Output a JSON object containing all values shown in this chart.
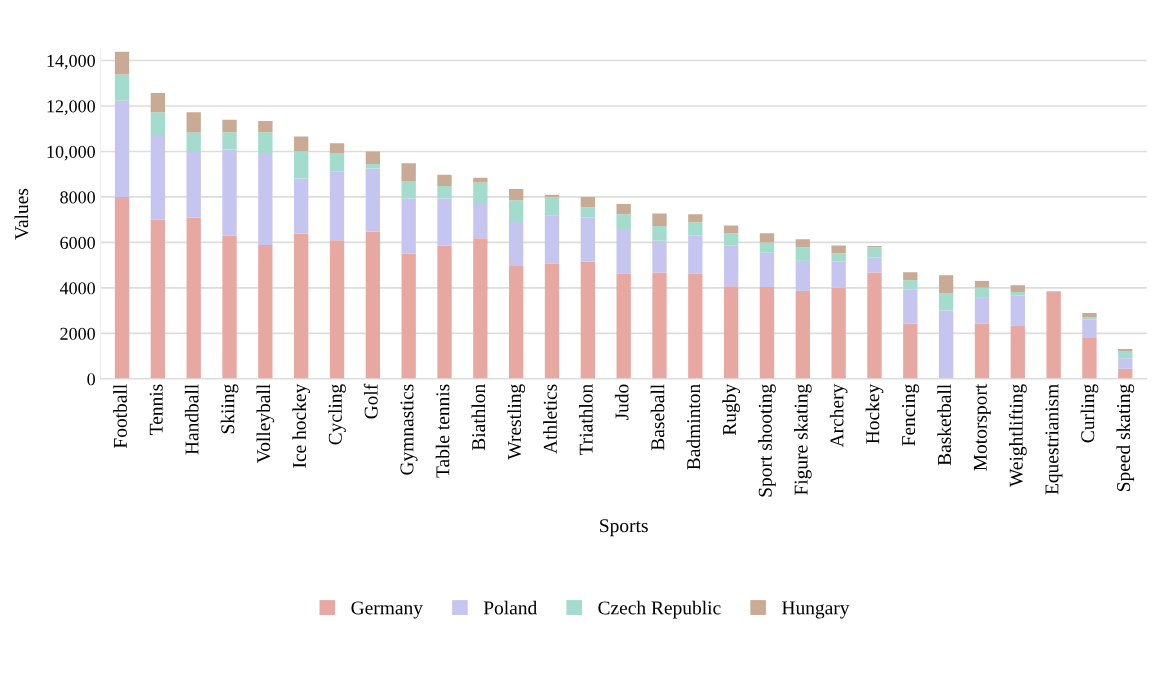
{
  "chart_data": {
    "type": "bar",
    "stacked": true,
    "xlabel": "Sports",
    "ylabel": "Values",
    "categories": [
      "Football",
      "Tennis",
      "Handball",
      "Skiing",
      "Volleyball",
      "Ice hockey",
      "Cycling",
      "Golf",
      "Gymnastics",
      "Table tennis",
      "Biathlon",
      "Wrestling",
      "Athletics",
      "Triathlon",
      "Judo",
      "Baseball",
      "Badminton",
      "Rugby",
      "Sport shooting",
      "Figure skating",
      "Archery",
      "Hockey",
      "Fencing",
      "Basketball",
      "Motorsport",
      "Weightlifting",
      "Equestrianism",
      "Curling",
      "Speed skating"
    ],
    "series": [
      {
        "name": "Germany",
        "color": "#e8a8a2",
        "values": [
          8000,
          7000,
          7100,
          6290,
          5890,
          6380,
          6100,
          6480,
          5500,
          5850,
          6180,
          4960,
          5060,
          5150,
          4620,
          4680,
          4620,
          4070,
          4040,
          3870,
          4000,
          4680,
          2440,
          0,
          2440,
          2330,
          3850,
          1800,
          450
        ]
      },
      {
        "name": "Poland",
        "color": "#c5c5f0",
        "values": [
          4230,
          3720,
          2880,
          3800,
          4000,
          2430,
          3010,
          2770,
          2430,
          2080,
          1510,
          1940,
          2140,
          1950,
          1970,
          1390,
          1670,
          1780,
          1510,
          1320,
          1170,
          660,
          1500,
          3010,
          1120,
          1340,
          0,
          800,
          460
        ]
      },
      {
        "name": "Czech Republic",
        "color": "#a3dccd",
        "values": [
          1150,
          1000,
          850,
          750,
          950,
          1200,
          800,
          200,
          750,
          550,
          950,
          950,
          800,
          450,
          650,
          650,
          600,
          550,
          450,
          600,
          350,
          450,
          400,
          750,
          450,
          150,
          0,
          100,
          300
        ]
      },
      {
        "name": "Hungary",
        "color": "#c9aa94",
        "values": [
          1000,
          850,
          900,
          550,
          500,
          650,
          450,
          550,
          800,
          500,
          200,
          500,
          100,
          450,
          450,
          550,
          350,
          350,
          400,
          350,
          350,
          50,
          350,
          800,
          300,
          300,
          0,
          200,
          100
        ]
      }
    ],
    "ylim": [
      0,
      14500
    ],
    "yticks": [
      0,
      2000,
      4000,
      6000,
      8000,
      {
        "value": 10000,
        "label": "10,000"
      },
      {
        "value": 12000,
        "label": "12,000"
      },
      {
        "value": 14000,
        "label": "14,000"
      }
    ],
    "grid": "y",
    "legend": "bottom"
  }
}
